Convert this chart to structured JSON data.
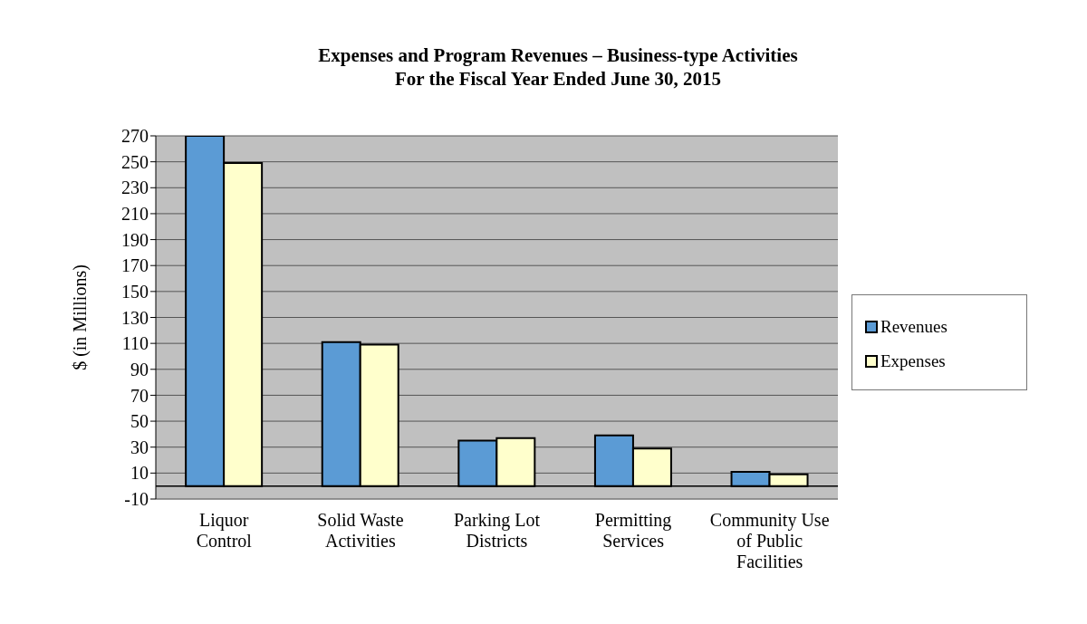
{
  "chart_data": {
    "type": "bar",
    "title": "Expenses and Program Revenues – Business-type Activities",
    "subtitle": "For the Fiscal Year Ended June 30, 2015",
    "ylabel": "$ (in Millions)",
    "categories": [
      "Liquor Control",
      "Solid Waste Activities",
      "Parking Lot Districts",
      "Permitting Services",
      "Community Use of Public Facilities"
    ],
    "series": [
      {
        "name": "Revenues",
        "color": "#5b9bd5",
        "values": [
          270,
          111,
          35,
          39,
          11
        ]
      },
      {
        "name": "Expenses",
        "color": "#ffffcc",
        "values": [
          249,
          109,
          37,
          29,
          9
        ]
      }
    ],
    "ylim": [
      -10,
      270
    ],
    "yticks": [
      -10,
      10,
      30,
      50,
      70,
      90,
      110,
      130,
      150,
      170,
      190,
      210,
      230,
      250,
      270
    ],
    "grid": "y",
    "legend": "right",
    "ref_lines": [
      {
        "axis": "y",
        "value": 0,
        "color": "#000000"
      }
    ]
  }
}
